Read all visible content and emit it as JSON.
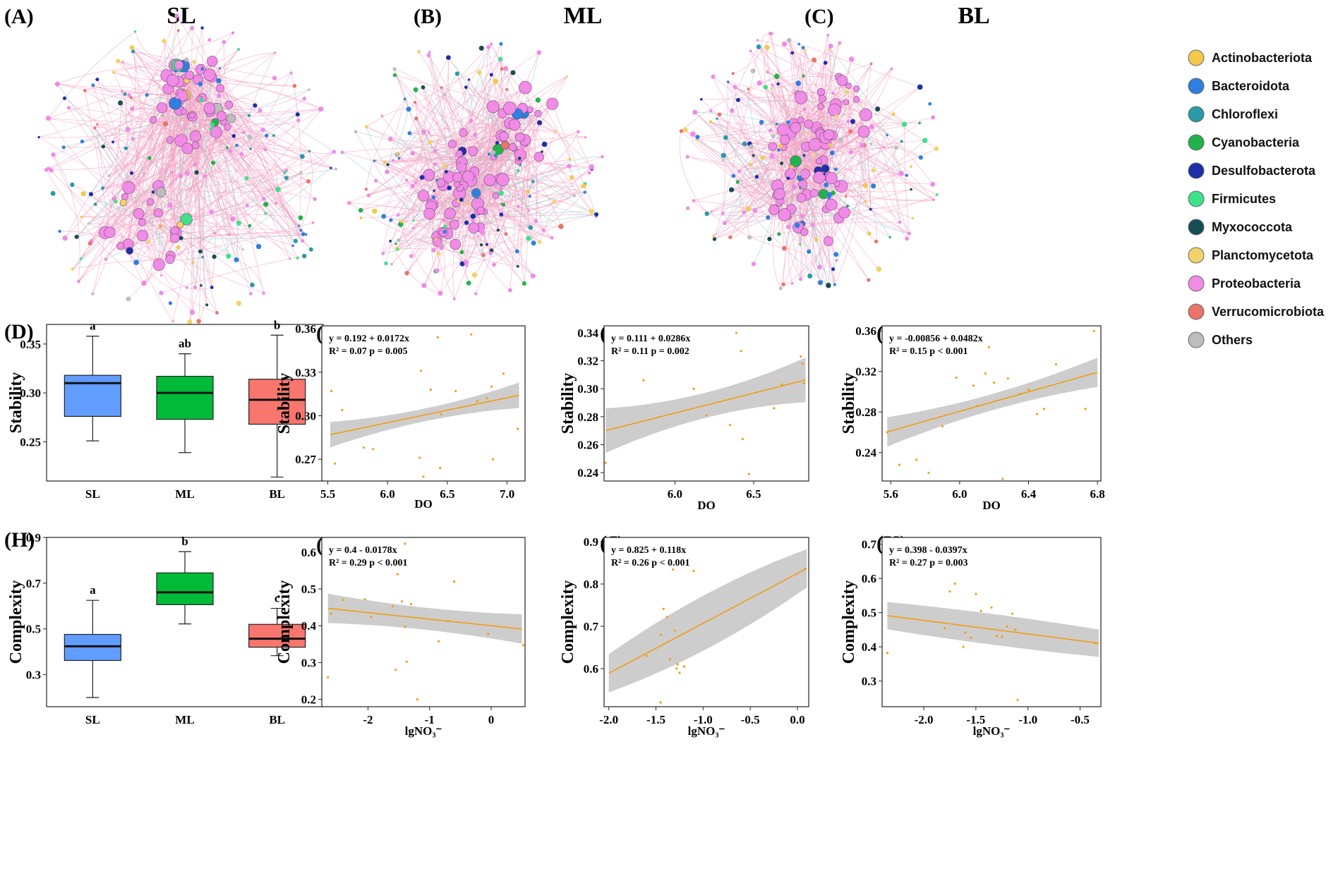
{
  "colors": {
    "Actinobacteriota": "#f2c94c",
    "Bacteroidota": "#2f7fe0",
    "Chloroflexi": "#2a9aa8",
    "Cyanobacteria": "#20b34a",
    "Desulfobacterota": "#1f2fa8",
    "Firmicutes": "#3fe08a",
    "Myxococcota": "#164e55",
    "Planctomycetota": "#f0d36a",
    "Proteobacteria": "#f08be6",
    "Verrucomicrobiota": "#e8746a",
    "Others": "#bdbdbd",
    "SL": "#619cff",
    "ML": "#00ba38",
    "BL": "#f8766d",
    "fit": "#f39c12",
    "band": "#c8c8c8",
    "edge": "#f3a3c4"
  },
  "networks": [
    {
      "label": "(A)",
      "title": "SL"
    },
    {
      "label": "(B)",
      "title": "ML"
    },
    {
      "label": "(C)",
      "title": "BL"
    }
  ],
  "legend": [
    {
      "name": "Actinobacteriota",
      "color": "#f2c94c"
    },
    {
      "name": "Bacteroidota",
      "color": "#2f7fe0"
    },
    {
      "name": "Chloroflexi",
      "color": "#2a9aa8"
    },
    {
      "name": "Cyanobacteria",
      "color": "#20b34a"
    },
    {
      "name": "Desulfobacterota",
      "color": "#1f2fa8"
    },
    {
      "name": "Firmicutes",
      "color": "#3fe08a"
    },
    {
      "name": "Myxococcota",
      "color": "#164e55"
    },
    {
      "name": "Planctomycetota",
      "color": "#f0d36a"
    },
    {
      "name": "Proteobacteria",
      "color": "#f08be6"
    },
    {
      "name": "Verrucomicrobiota",
      "color": "#e8746a"
    },
    {
      "name": "Others",
      "color": "#bdbdbd"
    }
  ],
  "chart_data": [
    {
      "label": "(D)",
      "type": "box",
      "ylabel": "Stability",
      "categories": [
        "SL",
        "ML",
        "BL"
      ],
      "ylim": [
        0.21,
        0.37
      ],
      "yticks": [
        "0.25",
        "0.30",
        "0.35"
      ],
      "boxes": [
        {
          "min": 0.251,
          "q1": 0.276,
          "median": 0.31,
          "q3": 0.318,
          "max": 0.358,
          "letter": "a"
        },
        {
          "min": 0.239,
          "q1": 0.273,
          "median": 0.3,
          "q3": 0.317,
          "max": 0.34,
          "letter": "ab"
        },
        {
          "min": 0.214,
          "q1": 0.268,
          "median": 0.293,
          "q3": 0.314,
          "max": 0.359,
          "letter": "b"
        }
      ]
    },
    {
      "label": "(E)",
      "type": "scatter",
      "ylabel": "Stability",
      "xlabel": "DO",
      "xlim": [
        5.45,
        7.15
      ],
      "ylim": [
        0.255,
        0.362
      ],
      "xticks": [
        "5.5",
        "6.0",
        "6.5",
        "7.0"
      ],
      "yticks": [
        "0.27",
        "0.30",
        "0.33",
        "0.36"
      ],
      "equation": "y = 0.192 + 0.0172x",
      "stats": "R² = 0.07 p = 0.005",
      "intercept": 0.192,
      "slope": 0.0172,
      "fit_range": [
        5.52,
        7.1
      ],
      "band": [
        0.0088,
        0.0044
      ],
      "points": [
        [
          5.53,
          0.317
        ],
        [
          5.56,
          0.267
        ],
        [
          5.62,
          0.304
        ],
        [
          5.8,
          0.278
        ],
        [
          5.88,
          0.277
        ],
        [
          6.27,
          0.271
        ],
        [
          6.28,
          0.331
        ],
        [
          6.3,
          0.258
        ],
        [
          6.36,
          0.318
        ],
        [
          6.42,
          0.354
        ],
        [
          6.44,
          0.264
        ],
        [
          6.45,
          0.301
        ],
        [
          6.57,
          0.317
        ],
        [
          6.7,
          0.356
        ],
        [
          6.75,
          0.31
        ],
        [
          6.83,
          0.312
        ],
        [
          6.87,
          0.32
        ],
        [
          6.88,
          0.27
        ],
        [
          6.97,
          0.329
        ],
        [
          7.09,
          0.291
        ]
      ]
    },
    {
      "label": "(F)",
      "type": "scatter",
      "ylabel": "Stability",
      "xlabel": "DO",
      "xlim": [
        5.55,
        6.85
      ],
      "ylim": [
        0.234,
        0.345
      ],
      "xticks": [
        "6.0",
        "6.5"
      ],
      "yticks": [
        "0.24",
        "0.26",
        "0.28",
        "0.30",
        "0.32",
        "0.34"
      ],
      "equation": "y = 0.111 + 0.0286x",
      "stats": "R² = 0.11 p = 0.002",
      "intercept": 0.111,
      "slope": 0.0286,
      "fit_range": [
        5.56,
        6.83
      ],
      "band": [
        0.016,
        0.009
      ],
      "points": [
        [
          5.56,
          0.247
        ],
        [
          5.8,
          0.306
        ],
        [
          6.12,
          0.3
        ],
        [
          6.2,
          0.281
        ],
        [
          6.35,
          0.274
        ],
        [
          6.39,
          0.34
        ],
        [
          6.42,
          0.327
        ],
        [
          6.43,
          0.264
        ],
        [
          6.47,
          0.239
        ],
        [
          6.63,
          0.286
        ],
        [
          6.68,
          0.303
        ],
        [
          6.8,
          0.323
        ],
        [
          6.81,
          0.318
        ],
        [
          6.82,
          0.304
        ]
      ]
    },
    {
      "label": "(G)",
      "type": "scatter",
      "ylabel": "Stability",
      "xlabel": "DO",
      "xlim": [
        5.55,
        6.82
      ],
      "ylim": [
        0.212,
        0.365
      ],
      "xticks": [
        "5.6",
        "6.0",
        "6.4",
        "6.8"
      ],
      "yticks": [
        "0.24",
        "0.28",
        "0.32",
        "0.36"
      ],
      "equation": "y = -0.00856 + 0.0482x",
      "stats": "R² = 0.15 p < 0.001",
      "intercept": -0.00856,
      "slope": 0.0482,
      "fit_range": [
        5.58,
        6.8
      ],
      "band": [
        0.0145,
        0.008
      ],
      "points": [
        [
          5.58,
          0.26
        ],
        [
          5.65,
          0.228
        ],
        [
          5.75,
          0.233
        ],
        [
          5.82,
          0.22
        ],
        [
          5.9,
          0.266
        ],
        [
          5.98,
          0.314
        ],
        [
          6.08,
          0.306
        ],
        [
          6.1,
          0.286
        ],
        [
          6.15,
          0.318
        ],
        [
          6.17,
          0.344
        ],
        [
          6.2,
          0.309
        ],
        [
          6.25,
          0.214
        ],
        [
          6.28,
          0.313
        ],
        [
          6.35,
          0.298
        ],
        [
          6.4,
          0.302
        ],
        [
          6.45,
          0.278
        ],
        [
          6.49,
          0.283
        ],
        [
          6.56,
          0.327
        ],
        [
          6.73,
          0.283
        ],
        [
          6.78,
          0.36
        ]
      ]
    },
    {
      "label": "(H)",
      "type": "box",
      "ylabel": "Complexity",
      "categories": [
        "SL",
        "ML",
        "BL"
      ],
      "ylim": [
        0.16,
        0.9
      ],
      "yticks": [
        "0.3",
        "0.5",
        "0.7",
        "0.9"
      ],
      "boxes": [
        {
          "min": 0.2,
          "q1": 0.362,
          "median": 0.424,
          "q3": 0.476,
          "max": 0.625,
          "letter": "a"
        },
        {
          "min": 0.522,
          "q1": 0.606,
          "median": 0.66,
          "q3": 0.745,
          "max": 0.838,
          "letter": "b"
        },
        {
          "min": 0.383,
          "q1": 0.42,
          "median": 0.457,
          "q3": 0.52,
          "max": 0.59,
          "letter": "c"
        }
      ]
    },
    {
      "label": "(I)",
      "type": "scatter",
      "ylabel": "Complexity",
      "xlabel": "lgNO₃⁻",
      "xlim": [
        -2.75,
        0.55
      ],
      "ylim": [
        0.18,
        0.64
      ],
      "xticks": [
        "-2",
        "-1",
        "0"
      ],
      "xtickvals": [
        -2,
        -1,
        0
      ],
      "yticks": [
        "0.2",
        "0.3",
        "0.4",
        "0.5",
        "0.6"
      ],
      "equation": "y = 0.4 - 0.0178x",
      "stats": "R² = 0.29 p < 0.001",
      "intercept": 0.4,
      "slope": -0.0178,
      "fit_range": [
        -2.65,
        0.5
      ],
      "band": [
        0.04,
        0.03
      ],
      "points": [
        [
          -2.65,
          0.26
        ],
        [
          -2.6,
          0.433
        ],
        [
          -2.4,
          0.47
        ],
        [
          -2.05,
          0.472
        ],
        [
          -1.95,
          0.424
        ],
        [
          -1.6,
          0.453
        ],
        [
          -1.55,
          0.28
        ],
        [
          -1.52,
          0.54
        ],
        [
          -1.5,
          0.572
        ],
        [
          -1.45,
          0.466
        ],
        [
          -1.4,
          0.623
        ],
        [
          -1.4,
          0.397
        ],
        [
          -1.37,
          0.302
        ],
        [
          -1.3,
          0.459
        ],
        [
          -1.2,
          0.2
        ],
        [
          -0.85,
          0.358
        ],
        [
          -0.7,
          0.413
        ],
        [
          -0.6,
          0.52
        ],
        [
          -0.05,
          0.378
        ],
        [
          0.52,
          0.347
        ]
      ]
    },
    {
      "label": "(J)",
      "type": "scatter",
      "ylabel": "Complexity",
      "xlabel": "lgNO₃⁻",
      "xlim": [
        -2.05,
        0.12
      ],
      "ylim": [
        0.51,
        0.91
      ],
      "xticks": [
        "-2.0",
        "-1.5",
        "-1.0",
        "-0.5",
        "0.0"
      ],
      "xtickvals": [
        -2.0,
        -1.5,
        -1.0,
        -0.5,
        0.0
      ],
      "yticks": [
        "0.6",
        "0.7",
        "0.8",
        "0.9"
      ],
      "equation": "y = 0.825 + 0.118x",
      "stats": "R² = 0.26 p < 0.001",
      "intercept": 0.825,
      "slope": 0.118,
      "fit_range": [
        -2.0,
        0.1
      ],
      "band": [
        0.045,
        0.065
      ],
      "points": [
        [
          -1.6,
          0.63
        ],
        [
          -1.45,
          0.52
        ],
        [
          -1.45,
          0.68
        ],
        [
          -1.42,
          0.741
        ],
        [
          -1.38,
          0.722
        ],
        [
          -1.35,
          0.622
        ],
        [
          -1.32,
          0.834
        ],
        [
          -1.3,
          0.69
        ],
        [
          -1.28,
          0.6
        ],
        [
          -1.27,
          0.61
        ],
        [
          -1.25,
          0.59
        ],
        [
          -1.2,
          0.605
        ],
        [
          -1.1,
          0.831
        ],
        [
          0.08,
          0.835
        ]
      ]
    },
    {
      "label": "(K)",
      "type": "scatter",
      "ylabel": "Complexity",
      "xlabel": "lgNO₃⁻",
      "xlim": [
        -2.4,
        -0.3
      ],
      "ylim": [
        0.225,
        0.72
      ],
      "xticks": [
        "-2.0",
        "-1.5",
        "-1.0",
        "-0.5"
      ],
      "xtickvals": [
        -2.0,
        -1.5,
        -1.0,
        -0.5
      ],
      "yticks": [
        "0.3",
        "0.4",
        "0.5",
        "0.6",
        "0.7"
      ],
      "equation": "y = 0.398 - 0.0397x",
      "stats": "R² = 0.27 p = 0.003",
      "intercept": 0.398,
      "slope": -0.0397,
      "fit_range": [
        -2.35,
        -0.32
      ],
      "band": [
        0.04,
        0.045
      ],
      "points": [
        [
          -2.35,
          0.382
        ],
        [
          -1.8,
          0.455
        ],
        [
          -1.75,
          0.562
        ],
        [
          -1.7,
          0.585
        ],
        [
          -1.62,
          0.4
        ],
        [
          -1.6,
          0.442
        ],
        [
          -1.55,
          0.427
        ],
        [
          -1.5,
          0.555
        ],
        [
          -1.45,
          0.505
        ],
        [
          -1.35,
          0.515
        ],
        [
          -1.3,
          0.432
        ],
        [
          -1.25,
          0.43
        ],
        [
          -1.2,
          0.46
        ],
        [
          -1.15,
          0.497
        ],
        [
          -1.12,
          0.45
        ],
        [
          -1.1,
          0.245
        ],
        [
          -0.35,
          0.41
        ]
      ]
    }
  ]
}
